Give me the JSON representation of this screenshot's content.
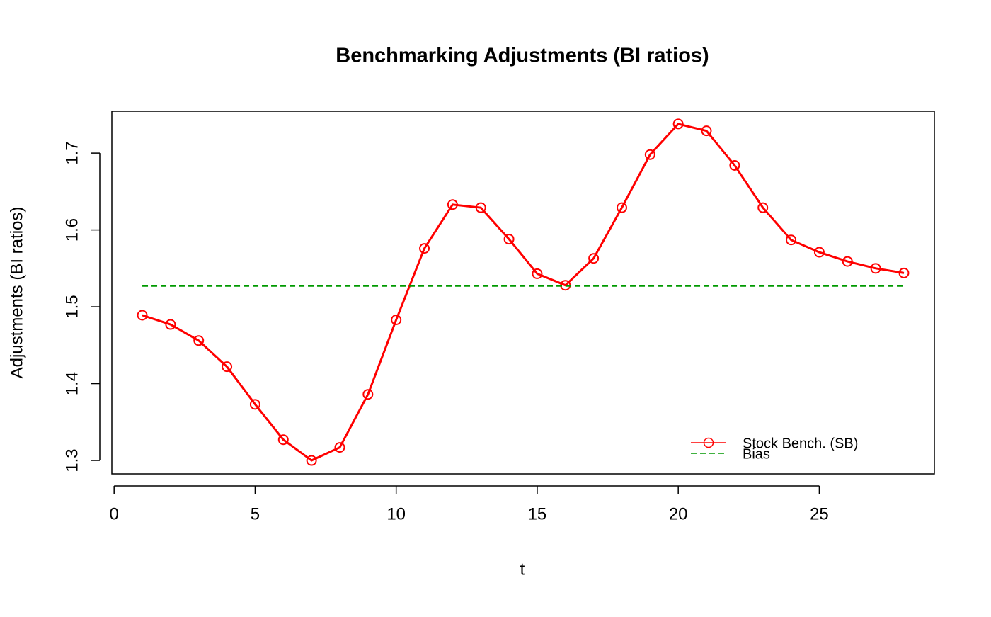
{
  "chart_data": {
    "type": "line",
    "title": "Benchmarking Adjustments (BI ratios)",
    "xlabel": "t",
    "ylabel": "Adjustments (BI ratios)",
    "x": [
      1,
      2,
      3,
      4,
      5,
      6,
      7,
      8,
      9,
      10,
      11,
      12,
      13,
      14,
      15,
      16,
      17,
      18,
      19,
      20,
      21,
      22,
      23,
      24,
      25,
      26,
      27,
      28
    ],
    "series": [
      {
        "name": "Stock Bench. (SB)",
        "color": "#ff0000",
        "line_style": "solid",
        "markers": true,
        "values": [
          1.489,
          1.477,
          1.456,
          1.422,
          1.373,
          1.327,
          1.3,
          1.317,
          1.386,
          1.483,
          1.576,
          1.633,
          1.629,
          1.588,
          1.543,
          1.528,
          1.563,
          1.629,
          1.698,
          1.738,
          1.729,
          1.684,
          1.629,
          1.587,
          1.571,
          1.559,
          1.55,
          1.544
        ]
      },
      {
        "name": "Bias",
        "color": "#009900",
        "line_style": "dashed",
        "markers": false,
        "values": [
          1.527,
          1.527,
          1.527,
          1.527,
          1.527,
          1.527,
          1.527,
          1.527,
          1.527,
          1.527,
          1.527,
          1.527,
          1.527,
          1.527,
          1.527,
          1.527,
          1.527,
          1.527,
          1.527,
          1.527,
          1.527,
          1.527,
          1.527,
          1.527,
          1.527,
          1.527,
          1.527,
          1.527
        ]
      }
    ],
    "xlim": [
      -0.08,
      29.08
    ],
    "ylim": [
      1.2825,
      1.7545
    ],
    "xticks": [
      0,
      5,
      10,
      15,
      20,
      25
    ],
    "yticks": [
      1.3,
      1.4,
      1.5,
      1.6,
      1.7
    ],
    "legend": "bottom-right"
  }
}
